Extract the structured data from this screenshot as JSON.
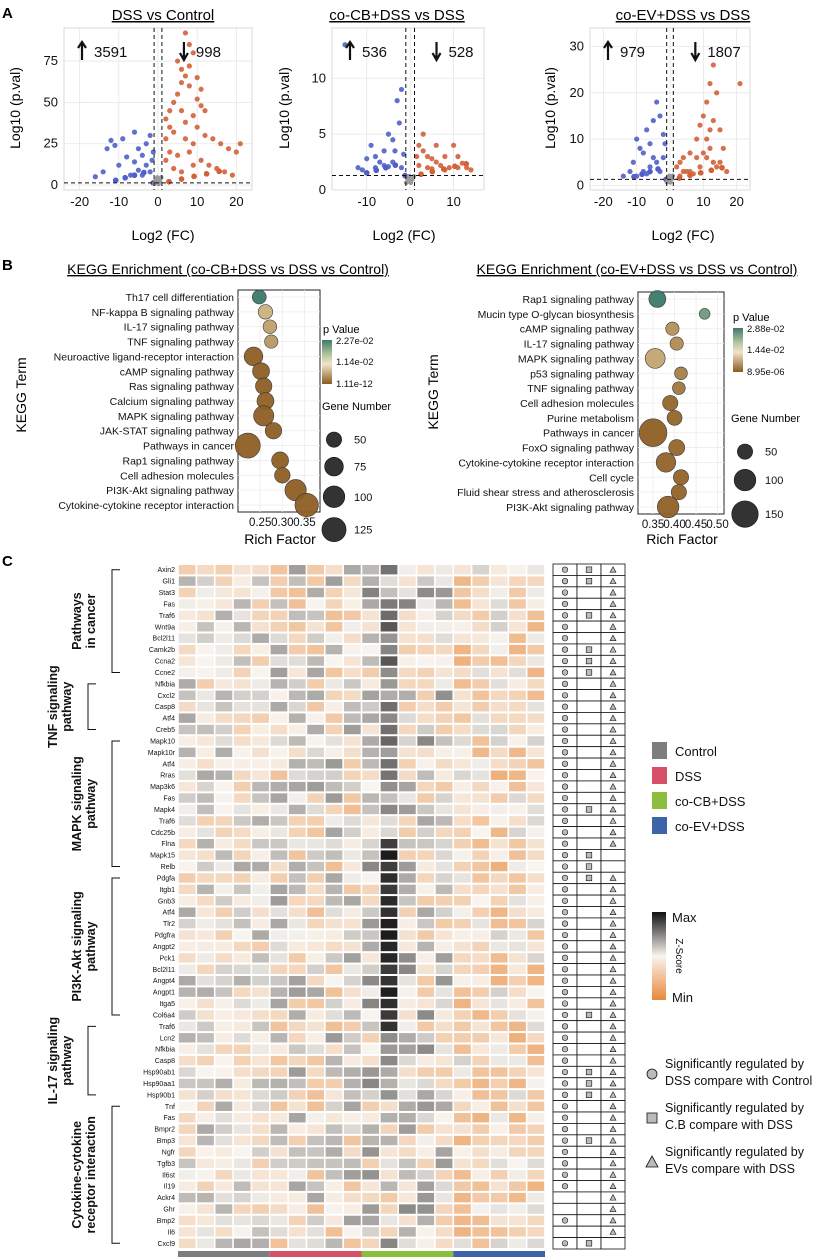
{
  "figure": {
    "panel_labels": {
      "a": "A",
      "b": "B",
      "c": "C"
    }
  },
  "chart_data": [
    {
      "type": "scatter",
      "id": "volcano1",
      "title": "DSS vs Control",
      "xlabel": "Log2 (FC)",
      "ylabel": "Log10 (p.val)",
      "xlim": [
        -24,
        24
      ],
      "ylim": [
        -3,
        95
      ],
      "xticks": [
        -20,
        -10,
        0,
        10,
        20
      ],
      "yticks": [
        0,
        25,
        50,
        75
      ],
      "up_count": "3591",
      "down_count": "998",
      "vlines": [
        -1,
        1
      ],
      "hline": 1.3,
      "points": [
        [
          -12,
          27
        ],
        [
          -11,
          24
        ],
        [
          -13,
          22
        ],
        [
          -9,
          28
        ],
        [
          -6,
          32
        ],
        [
          -5,
          22
        ],
        [
          -4,
          18
        ],
        [
          -3,
          25
        ],
        [
          -2,
          30
        ],
        [
          -8,
          17
        ],
        [
          -10,
          12
        ],
        [
          -14,
          8
        ],
        [
          -16,
          5
        ],
        [
          -7,
          6
        ],
        [
          -5,
          9
        ],
        [
          -3,
          12
        ],
        [
          -2,
          8
        ],
        [
          -1.5,
          15
        ],
        [
          -1.2,
          20
        ],
        [
          -6,
          14
        ],
        [
          -4,
          6
        ],
        [
          2,
          40
        ],
        [
          3,
          35
        ],
        [
          4,
          50
        ],
        [
          5,
          55
        ],
        [
          6,
          62
        ],
        [
          7,
          92
        ],
        [
          8,
          85
        ],
        [
          9,
          80
        ],
        [
          5,
          75
        ],
        [
          6,
          70
        ],
        [
          7,
          66
        ],
        [
          8,
          60
        ],
        [
          10,
          52
        ],
        [
          11,
          48
        ],
        [
          12,
          45
        ],
        [
          9,
          42
        ],
        [
          10,
          35
        ],
        [
          12,
          30
        ],
        [
          14,
          28
        ],
        [
          16,
          25
        ],
        [
          18,
          22
        ],
        [
          20,
          20
        ],
        [
          21,
          25
        ],
        [
          6,
          45
        ],
        [
          4,
          32
        ],
        [
          3,
          20
        ],
        [
          2,
          15
        ],
        [
          5,
          18
        ],
        [
          7,
          28
        ],
        [
          8,
          20
        ],
        [
          11,
          15
        ],
        [
          13,
          12
        ],
        [
          15,
          10
        ],
        [
          17,
          8
        ],
        [
          19,
          6
        ],
        [
          4,
          10
        ],
        [
          6,
          8
        ],
        [
          9,
          12
        ],
        [
          10,
          65
        ],
        [
          8,
          72
        ],
        [
          11,
          58
        ],
        [
          3,
          45
        ],
        [
          2,
          28
        ],
        [
          7,
          38
        ],
        [
          9,
          25
        ]
      ]
    },
    {
      "type": "scatter",
      "id": "volcano2",
      "title": "co-CB+DSS vs DSS",
      "xlabel": "Log2 (FC)",
      "ylabel": "Log10 (p.val)",
      "xlim": [
        -18,
        17
      ],
      "ylim": [
        0,
        14.5
      ],
      "xticks": [
        -10,
        0,
        10
      ],
      "yticks": [
        0,
        5,
        10
      ],
      "up_count": "536",
      "down_count": "528",
      "vlines": [
        -1,
        1
      ],
      "hline": 1.3,
      "points": [
        [
          -15,
          13
        ],
        [
          -9,
          4
        ],
        [
          -8,
          3
        ],
        [
          -7,
          2.5
        ],
        [
          -12,
          2
        ],
        [
          -5,
          5
        ],
        [
          -4,
          4.5
        ],
        [
          -3,
          8
        ],
        [
          -2,
          9
        ],
        [
          -2.5,
          6
        ],
        [
          -3.5,
          3.5
        ],
        [
          -6,
          2.2
        ],
        [
          -10,
          2.8
        ],
        [
          -1.5,
          3.2
        ],
        [
          -2,
          2
        ],
        [
          -4,
          2.5
        ],
        [
          -8,
          2
        ],
        [
          -11,
          1.8
        ],
        [
          -6,
          3.5
        ],
        [
          -5,
          2.1
        ],
        [
          2,
          4
        ],
        [
          3,
          3.5
        ],
        [
          4,
          3
        ],
        [
          5,
          2.8
        ],
        [
          6,
          2.5
        ],
        [
          7,
          2.2
        ],
        [
          8,
          3
        ],
        [
          10,
          4
        ],
        [
          11,
          3
        ],
        [
          12,
          2.4
        ],
        [
          13,
          2
        ],
        [
          14,
          1.8
        ],
        [
          9,
          2
        ],
        [
          3,
          5
        ],
        [
          2,
          2.2
        ],
        [
          5,
          1.9
        ],
        [
          6,
          4
        ],
        [
          8,
          1.8
        ],
        [
          11,
          2
        ],
        [
          4,
          2
        ],
        [
          1.5,
          3
        ]
      ]
    },
    {
      "type": "scatter",
      "id": "volcano3",
      "title": "co-EV+DSS vs DSS",
      "xlabel": "Log2 (FC)",
      "ylabel": "Log10 (p.val)",
      "xlim": [
        -24,
        24
      ],
      "ylim": [
        -1,
        34
      ],
      "xticks": [
        -20,
        -10,
        0,
        10,
        20
      ],
      "yticks": [
        0,
        10,
        20,
        30
      ],
      "up_count": "979",
      "down_count": "1807",
      "vlines": [
        -1,
        1
      ],
      "hline": 1.3,
      "points": [
        [
          -10,
          10
        ],
        [
          -9,
          8
        ],
        [
          -8,
          7
        ],
        [
          -7,
          12
        ],
        [
          -6,
          9
        ],
        [
          -5,
          6
        ],
        [
          -4,
          18
        ],
        [
          -3,
          15
        ],
        [
          -2,
          11
        ],
        [
          -11,
          5
        ],
        [
          -12,
          3
        ],
        [
          -14,
          2
        ],
        [
          -6,
          4
        ],
        [
          -4,
          5
        ],
        [
          -3,
          3
        ],
        [
          -2,
          6
        ],
        [
          -1.5,
          9
        ],
        [
          -5,
          14
        ],
        [
          -8,
          3
        ],
        [
          -10,
          2
        ],
        [
          -7,
          2.5
        ],
        [
          2,
          4
        ],
        [
          3,
          5
        ],
        [
          4,
          6
        ],
        [
          5,
          3
        ],
        [
          6,
          7
        ],
        [
          8,
          10
        ],
        [
          9,
          13
        ],
        [
          10,
          15
        ],
        [
          11,
          18
        ],
        [
          12,
          22
        ],
        [
          13,
          26
        ],
        [
          14,
          20
        ],
        [
          15,
          12
        ],
        [
          16,
          8
        ],
        [
          21,
          22
        ],
        [
          11,
          10
        ],
        [
          12,
          8
        ],
        [
          13,
          5
        ],
        [
          14,
          4
        ],
        [
          8,
          6
        ],
        [
          6,
          3
        ],
        [
          10,
          7
        ],
        [
          12,
          12
        ],
        [
          15,
          5
        ],
        [
          17,
          3
        ],
        [
          9,
          4
        ],
        [
          7,
          2.5
        ],
        [
          3,
          2
        ],
        [
          4,
          3
        ],
        [
          13,
          14
        ],
        [
          11,
          6
        ]
      ]
    },
    {
      "type": "scatter",
      "id": "kegg1",
      "title": "KEGG Enrichment (co-CB+DSS vs DSS vs Control)",
      "xlabel": "Rich Factor",
      "ylabel": "KEGG Term",
      "xlim": [
        0.2,
        0.385
      ],
      "xticks": [
        "0.25",
        "0.30",
        "0.35"
      ],
      "xtick_values": [
        0.25,
        0.3,
        0.35
      ],
      "terms": [
        "Th17 cell differentiation",
        "NF-kappa B signaling pathway",
        "IL-17 signaling pathway",
        "TNF signaling pathway",
        "Neuroactive ligand-receptor interaction",
        "cAMP signaling pathway",
        "Ras signaling pathway",
        "Calcium signaling pathway",
        "MAPK signaling pathway",
        "JAK-STAT signaling pathway",
        "Pathways in cancer",
        "Rap1 signaling pathway",
        "Cell adhesion molecules",
        "PI3K-Akt signaling pathway",
        "Cytokine-cytokine receptor interaction"
      ],
      "rich_factor": [
        0.248,
        0.262,
        0.272,
        0.275,
        0.235,
        0.252,
        0.258,
        0.262,
        0.258,
        0.28,
        0.222,
        0.295,
        0.3,
        0.33,
        0.355
      ],
      "gene_number": [
        42,
        45,
        40,
        38,
        75,
        62,
        58,
        62,
        88,
        58,
        135,
        62,
        52,
        98,
        118
      ],
      "pvalue_fraction": [
        1.0,
        0.35,
        0.28,
        0.25,
        0.02,
        0.02,
        0.02,
        0.03,
        0.02,
        0.02,
        0.02,
        0.02,
        0.02,
        0.02,
        0.02
      ],
      "legend_title": "p Value",
      "legend_ticks": [
        "2.27e-02",
        "1.14e-02",
        "1.11e-12"
      ],
      "size_title": "Gene Number",
      "size_labels": [
        "50",
        "75",
        "100",
        "125"
      ],
      "size_values": [
        50,
        75,
        100,
        125
      ]
    },
    {
      "type": "scatter",
      "id": "kegg2",
      "title": "KEGG Enrichment (co-EV+DSS vs DSS vs Control)",
      "xlabel": "Rich Factor",
      "ylabel": "KEGG Term",
      "xlim": [
        0.315,
        0.515
      ],
      "xticks": [
        "0.35",
        "0.40",
        "0.45",
        "0.50"
      ],
      "xtick_values": [
        0.35,
        0.4,
        0.45,
        0.5
      ],
      "terms": [
        "Rap1 signaling pathway",
        "Mucin type O-glycan biosynthesis",
        "cAMP signaling pathway",
        "IL-17 signaling pathway",
        "MAPK signaling pathway",
        "p53 signaling pathway",
        "TNF signaling pathway",
        "Cell adhesion molecules",
        "Purine metabolism",
        "Pathways in cancer",
        "FoxO signaling pathway",
        "Cytokine-cytokine receptor interaction",
        "Cell cycle",
        "Fluid shear stress and atherosclerosis",
        "PI3K-Akt signaling pathway"
      ],
      "rich_factor": [
        0.36,
        0.47,
        0.395,
        0.405,
        0.355,
        0.415,
        0.41,
        0.39,
        0.4,
        0.35,
        0.405,
        0.38,
        0.415,
        0.41,
        0.385
      ],
      "gene_number": [
        62,
        25,
        38,
        38,
        85,
        35,
        35,
        50,
        48,
        165,
        55,
        82,
        50,
        50,
        100
      ],
      "pvalue_fraction": [
        1.0,
        0.8,
        0.22,
        0.2,
        0.3,
        0.15,
        0.12,
        0.05,
        0.05,
        0.02,
        0.05,
        0.04,
        0.04,
        0.04,
        0.03
      ],
      "legend_title": "p Value",
      "legend_ticks": [
        "2.88e-02",
        "1.44e-02",
        "8.95e-06"
      ],
      "size_title": "Gene Number",
      "size_labels": [
        "50",
        "100",
        "150"
      ],
      "size_values": [
        50,
        100,
        150
      ]
    },
    {
      "type": "heatmap",
      "id": "heatmap",
      "genes": [
        "Axin2",
        "Gli1",
        "Stat3",
        "Fas",
        "Traf6",
        "Wnt9a",
        "Bcl2l11",
        "Camk2b",
        "Ccna2",
        "Ccne2",
        "Nfkbia",
        "Cxcl2",
        "Casp8",
        "Atf4",
        "Creb5",
        "Mapk10",
        "Mapk10r",
        "Atf4",
        "Rras",
        "Map3k6",
        "Fas",
        "Mapk4",
        "Traf6",
        "Cdc25b",
        "Flna",
        "Mapk15",
        "Relb",
        "Pdgfa",
        "Itgb1",
        "Gnb3",
        "Atf4",
        "Tlr2",
        "Pdgfra",
        "Angpt2",
        "Pck1",
        "Bcl2l11",
        "Angpt4",
        "Angpt1",
        "Itga5",
        "Col6a4",
        "Traf6",
        "Lcn2",
        "Nfkbia",
        "Casp8",
        "Hsp90ab1",
        "Hsp90aa1",
        "Hsp90b1",
        "Tnf",
        "Fas",
        "Bmpr2",
        "Bmp3",
        "Ngfr",
        "Tgfb3",
        "Il6st",
        "Il19",
        "Ackr4",
        "Ghr",
        "Bmp2",
        "Il6",
        "Cxcl9"
      ],
      "groups": [
        {
          "name": "Pathways in cancer",
          "label_lines": [
            "Pathways",
            "in cancer"
          ],
          "start": 0,
          "end": 9
        },
        {
          "name": "TNF signaling pathway",
          "label_lines": [
            "TNF signaling",
            "pathway"
          ],
          "start": 10,
          "end": 14
        },
        {
          "name": "MAPK signaling pathway",
          "label_lines": [
            "MAPK signaling",
            "pathway"
          ],
          "start": 15,
          "end": 26
        },
        {
          "name": "PI3K-Akt signaling pathway",
          "label_lines": [
            "PI3K-Akt signaling",
            "pathway"
          ],
          "start": 27,
          "end": 39
        },
        {
          "name": "IL-17 signaling pathway",
          "label_lines": [
            "IL-17 signaling",
            "pathway"
          ],
          "start": 40,
          "end": 46
        },
        {
          "name": "Cytokine-cytokine receptor interaction",
          "label_lines": [
            "Cytokine-cytokine",
            "receptor interaction"
          ],
          "start": 47,
          "end": 59
        }
      ],
      "sample_groups": [
        {
          "name": "Control",
          "color": "#7d7d7d"
        },
        {
          "name": "DSS",
          "color": "#d6506a"
        },
        {
          "name": "co-CB+DSS",
          "color": "#8bbd3e"
        },
        {
          "name": "co-EV+DSS",
          "color": "#3d63a8"
        }
      ],
      "samples_per_group": 5,
      "colorscale": {
        "title": "Z-Score",
        "max_label": "Max",
        "min_label": "Min",
        "min_color": "#e8893a",
        "mid_color": "#f8f4ef",
        "max_color": "#111111"
      },
      "significance_legend": [
        {
          "symbol": "circle",
          "text_lines": [
            "Significantly regulated by",
            "DSS compare with Control"
          ]
        },
        {
          "symbol": "square",
          "text_lines": [
            "Significantly regulated by",
            "C.B compare with DSS"
          ]
        },
        {
          "symbol": "triangle",
          "text_lines": [
            "Significantly regulated by",
            "EVs compare with DSS"
          ]
        }
      ],
      "square_rows": [
        0,
        1,
        4,
        7,
        8,
        9,
        21,
        25,
        26,
        27,
        39,
        44,
        45,
        46,
        50,
        59
      ]
    }
  ]
}
